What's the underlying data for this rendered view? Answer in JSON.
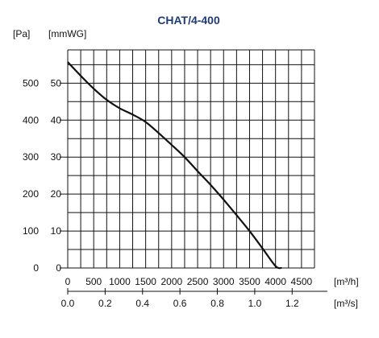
{
  "chart_data": {
    "type": "line",
    "title": "CHAT/4-400",
    "y_unit_pa": "[Pa]",
    "y_unit_mmwg": "[mmWG]",
    "x_unit_m3h": "[m³/h]",
    "x_unit_m3s": "[m³/s]",
    "x_m3h_ticks": [
      "0",
      "500",
      "1000",
      "1500",
      "2000",
      "2500",
      "3000",
      "3500",
      "4000",
      "4500"
    ],
    "x_m3h_range": [
      0,
      4750
    ],
    "x_m3s_ticks": [
      {
        "label": "0.0",
        "value": 0.0
      },
      {
        "label": "0.2",
        "value": 0.2
      },
      {
        "label": "0.4",
        "value": 0.4
      },
      {
        "label": "0.6",
        "value": 0.6
      },
      {
        "label": "0.8",
        "value": 0.8
      },
      {
        "label": "1.0",
        "value": 1.0
      },
      {
        "label": "1.2",
        "value": 1.2
      }
    ],
    "y_pa_ticks": [
      "0",
      "100",
      "200",
      "300",
      "400",
      "500"
    ],
    "y_pa_range": [
      0,
      590
    ],
    "y_mmwg_ticks": [
      "0",
      "10",
      "20",
      "30",
      "40",
      "50"
    ],
    "grid": true,
    "series": [
      {
        "x": [
          0,
          250,
          500,
          750,
          1000,
          1250,
          1500,
          1750,
          2000,
          2250,
          2500,
          2750,
          3000,
          3250,
          3500,
          3750,
          4000,
          4120
        ],
        "y": [
          557,
          520,
          485,
          455,
          432,
          415,
          395,
          365,
          333,
          300,
          262,
          225,
          185,
          143,
          100,
          53,
          5,
          0
        ]
      }
    ],
    "color": "#111111",
    "title_color": "#1f3c78"
  }
}
